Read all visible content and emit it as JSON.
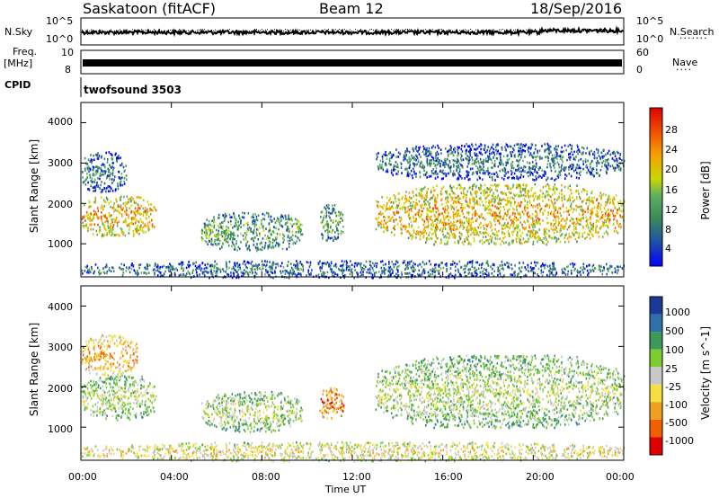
{
  "header": {
    "station": "Saskatoon (fitACF)",
    "beam": "Beam 12",
    "date": "18/Sep/2016"
  },
  "strips": {
    "nsky_label": "N.Sky",
    "nsky_ticks": [
      "10^5",
      "10^0"
    ],
    "nsearch_label": "N.Search",
    "nsearch_ticks": [
      "10^5",
      "10^0"
    ],
    "freq_label": "Freq.",
    "freq_unit": "[MHz]",
    "freq_ticks": [
      "10",
      "8"
    ],
    "nave_label": "Nave",
    "nave_ticks": [
      "60",
      "0"
    ],
    "cpid_label": "CPID",
    "cpid_value": "twofsound 3503"
  },
  "chart_data": [
    {
      "type": "heatmap",
      "name": "power",
      "ylabel": "Slant Range [km]",
      "xlabel": "",
      "xlim_hours": [
        0,
        24
      ],
      "ylim": [
        180,
        4500
      ],
      "yticks": [
        "4000",
        "3000",
        "2000",
        "1000"
      ],
      "colorbar_label": "Power [dB]",
      "colorbar_ticks": [
        "28",
        "24",
        "20",
        "16",
        "12",
        "8",
        "4"
      ],
      "colors": [
        "#0000ff",
        "#1e4fa8",
        "#3a8a5a",
        "#60b060",
        "#c8d800",
        "#f6a000",
        "#f05000",
        "#e00000"
      ],
      "regions": [
        {
          "t": [
            0.0,
            3.3
          ],
          "r": [
            1200,
            2200
          ],
          "level": 5
        },
        {
          "t": [
            0.0,
            2.0
          ],
          "r": [
            2300,
            3300
          ],
          "level": 2
        },
        {
          "t": [
            5.3,
            9.8
          ],
          "r": [
            850,
            1800
          ],
          "level": 3
        },
        {
          "t": [
            10.5,
            11.6
          ],
          "r": [
            1100,
            2000
          ],
          "level": 3
        },
        {
          "t": [
            13.0,
            24.0
          ],
          "r": [
            1000,
            2500
          ],
          "level": 5
        },
        {
          "t": [
            13.0,
            24.0
          ],
          "r": [
            2600,
            3500
          ],
          "level": 2
        },
        {
          "t": [
            0.0,
            24.0
          ],
          "r": [
            180,
            600
          ],
          "level": 2
        }
      ]
    },
    {
      "type": "heatmap",
      "name": "velocity",
      "ylabel": "Slant Range [km]",
      "xlabel": "Time UT",
      "xlim_hours": [
        0,
        24
      ],
      "ylim": [
        180,
        4500
      ],
      "yticks": [
        "4000",
        "3000",
        "2000",
        "1000"
      ],
      "xticks": [
        "00:00",
        "04:00",
        "08:00",
        "12:00",
        "16:00",
        "20:00",
        "00:00"
      ],
      "colorbar_label": "Velocity [m s^-1]",
      "colorbar_ticks": [
        "1000",
        "500",
        "100",
        "25",
        "-25",
        "-100",
        "-500",
        "-1000"
      ],
      "colors": [
        "#1a3a9a",
        "#2f70a8",
        "#3a9a5a",
        "#7ccc30",
        "#c8c8c8",
        "#f4e040",
        "#f0a020",
        "#f06000",
        "#e00000"
      ],
      "regions": [
        {
          "t": [
            0.0,
            3.3
          ],
          "r": [
            1200,
            2300
          ],
          "level": 4
        },
        {
          "t": [
            0.0,
            2.5
          ],
          "r": [
            2300,
            3300
          ],
          "level": 6
        },
        {
          "t": [
            5.3,
            9.8
          ],
          "r": [
            900,
            1900
          ],
          "level": 4
        },
        {
          "t": [
            10.5,
            11.6
          ],
          "r": [
            1200,
            2000
          ],
          "level": 7
        },
        {
          "t": [
            13.0,
            24.0
          ],
          "r": [
            1000,
            2800
          ],
          "level": 4
        },
        {
          "t": [
            0.0,
            24.0
          ],
          "r": [
            180,
            650
          ],
          "level": 5
        }
      ]
    }
  ]
}
